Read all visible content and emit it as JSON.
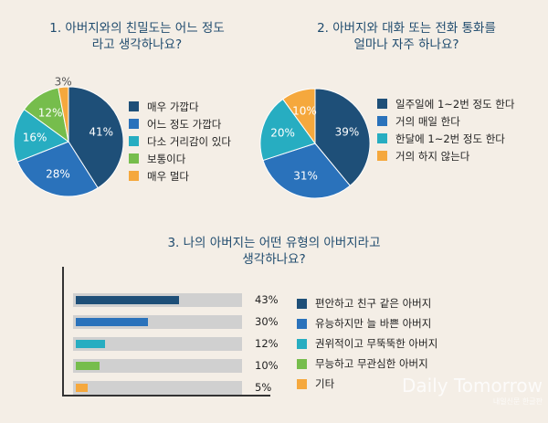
{
  "colors": {
    "navy": "#1e4f78",
    "blue": "#2a72bb",
    "teal": "#27adc1",
    "green": "#76bd4c",
    "orange": "#f5a83d"
  },
  "chart_data": [
    {
      "type": "pie",
      "title": "1. 아버지와의 친밀도는 어느 정도\n라고 생각하나요?",
      "slices": [
        {
          "label": "매우 가깝다",
          "value": 41,
          "display": "41%",
          "color": "#1e4f78"
        },
        {
          "label": "어느 정도 가깝다",
          "value": 28,
          "display": "28%",
          "color": "#2a72bb"
        },
        {
          "label": "다소 거리감이 있다",
          "value": 16,
          "display": "16%",
          "color": "#27adc1"
        },
        {
          "label": "보통이다",
          "value": 12,
          "display": "12%",
          "color": "#76bd4c"
        },
        {
          "label": "매우 멀다",
          "value": 3,
          "display": "3%",
          "color": "#f5a83d"
        }
      ],
      "legend_position": "right"
    },
    {
      "type": "pie",
      "title": "2. 아버지와 대화 또는 전화 통화를\n얼마나 자주 하나요?",
      "slices": [
        {
          "label": "일주일에 1~2번 정도 한다",
          "value": 39,
          "display": "39%",
          "color": "#1e4f78"
        },
        {
          "label": "거의 매일 한다",
          "value": 31,
          "display": "31%",
          "color": "#2a72bb"
        },
        {
          "label": "한달에 1~2번 정도 한다",
          "value": 20,
          "display": "20%",
          "color": "#27adc1"
        },
        {
          "label": "거의 하지 않는다",
          "value": 10,
          "display": "10%",
          "color": "#f5a83d"
        }
      ],
      "legend_position": "right"
    },
    {
      "type": "bar",
      "orientation": "horizontal",
      "title": "3. 나의 아버지는 어떤 유형의 아버지라고\n생각하나요?",
      "categories": [
        "편안하고 친구 같은 아버지",
        "유능하지만 늘 바쁜 아버지",
        "권위적이고 무뚝뚝한 아버지",
        "무능하고 무관심한 아버지",
        "기타"
      ],
      "values": [
        43,
        30,
        12,
        10,
        5
      ],
      "value_labels": [
        "43%",
        "30%",
        "12%",
        "10%",
        "5%"
      ],
      "colors": [
        "#1e4f78",
        "#2a72bb",
        "#27adc1",
        "#76bd4c",
        "#f5a83d"
      ],
      "xlim": [
        0,
        68
      ],
      "legend_position": "right"
    }
  ],
  "watermark": {
    "brand": "Daily Tomorrow",
    "sub": "내일신문 한글판"
  }
}
